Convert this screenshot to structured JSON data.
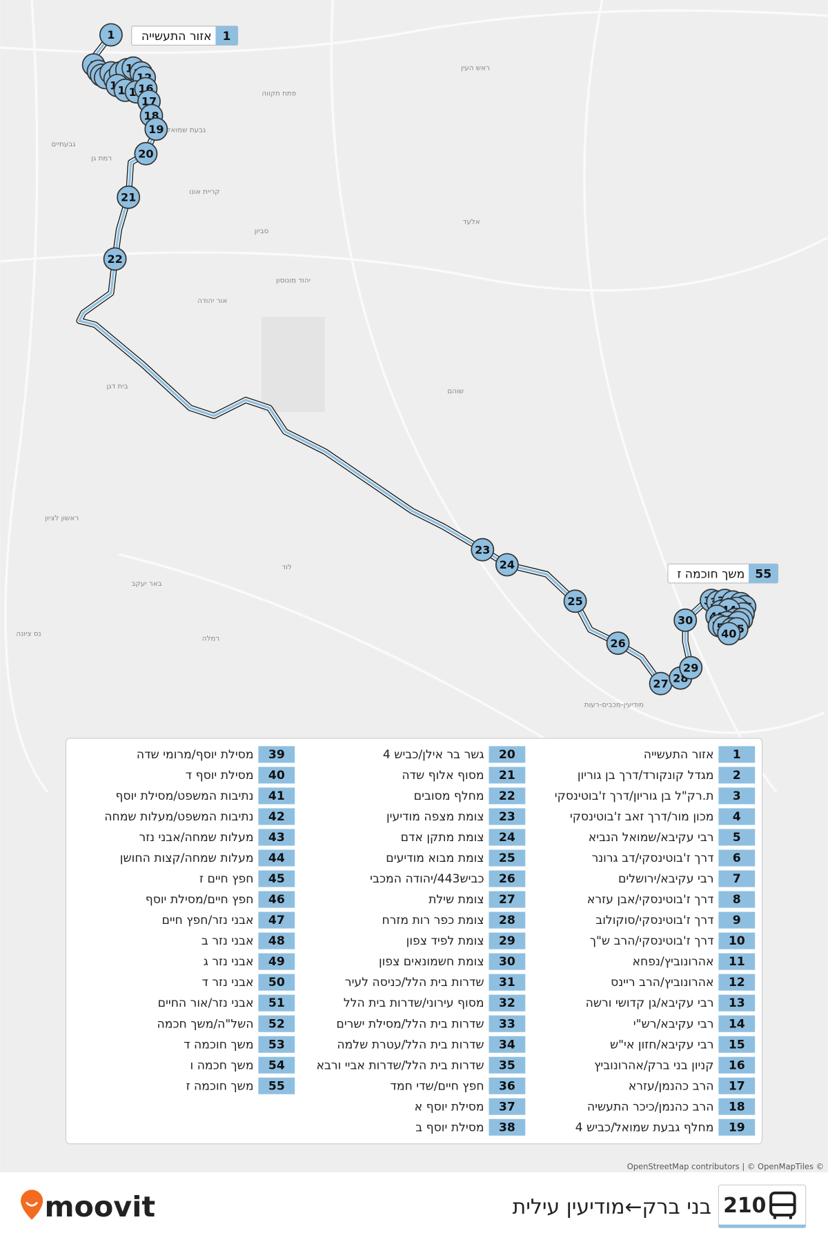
{
  "map": {
    "labels": [
      "פתח תקווה",
      "רמת גן",
      "גבעת שמואל",
      "גבעתיים",
      "קריית אונו",
      "סביון",
      "יהוד מונוסון",
      "אור יהודה",
      "ראש העין",
      "אלעד",
      "שוהם",
      "בית דגן",
      "לוד",
      "רמלה",
      "באר יעקב",
      "ראשון לציון",
      "נס ציונה",
      "מודיעין-מכבים-רעות"
    ],
    "attribution": "OpenStreetMap contributors | © OpenMapTiles ©"
  },
  "stops": [
    {
      "number": 1,
      "name": "אזור התעשייה"
    },
    {
      "number": 2,
      "name": "מגדל קונקורד/דרך בן גוריון"
    },
    {
      "number": 3,
      "name": "ת.רק\"ל בן גוריון/דרך ז'בוטינסקי"
    },
    {
      "number": 4,
      "name": "מכון מור/דרך זאב ז'בוטינסקי"
    },
    {
      "number": 5,
      "name": "רבי עקיבא/שמואל הנביא"
    },
    {
      "number": 6,
      "name": "דרך ז'בוטינסקי/דב גרונר"
    },
    {
      "number": 7,
      "name": "רבי עקיבא/ירושלים"
    },
    {
      "number": 8,
      "name": "דרך ז'בוטינסקי/אבן עזרא"
    },
    {
      "number": 9,
      "name": "דרך ז'בוטינסקי/סוקולוב"
    },
    {
      "number": 10,
      "name": "דרך ז'בוטינסקי/הרב ש\"ך"
    },
    {
      "number": 11,
      "name": "אהרונוביץ/נפחא"
    },
    {
      "number": 12,
      "name": "אהרונוביץ/הרב ריינס"
    },
    {
      "number": 13,
      "name": "רבי עקיבא/גן קדושי ורשה"
    },
    {
      "number": 14,
      "name": "רבי עקיבא/רש\"י"
    },
    {
      "number": 15,
      "name": "רבי עקיבא/חזון אי\"ש"
    },
    {
      "number": 16,
      "name": "קניון בני ברק/אהרונוביץ"
    },
    {
      "number": 17,
      "name": "הרב כהנמן/עזרא"
    },
    {
      "number": 18,
      "name": "הרב כהנמן/כיכר התעשיה"
    },
    {
      "number": 19,
      "name": "מחלף גבעת שמואל/כביש 4"
    },
    {
      "number": 20,
      "name": "גשר בר אילן/כביש 4"
    },
    {
      "number": 21,
      "name": "מסוף אלוף שדה"
    },
    {
      "number": 22,
      "name": "מחלף מסובים"
    },
    {
      "number": 23,
      "name": "צומת מצפה מודיעין"
    },
    {
      "number": 24,
      "name": "צומת מתקן אדם"
    },
    {
      "number": 25,
      "name": "צומת מבוא מודיעים"
    },
    {
      "number": 26,
      "name": "כביש443/יהודה המכבי"
    },
    {
      "number": 27,
      "name": "צומת שילת"
    },
    {
      "number": 28,
      "name": "צומת כפר רות מזרח"
    },
    {
      "number": 29,
      "name": "צומת לפיד צפון"
    },
    {
      "number": 30,
      "name": "צומת חשמונאים צפון"
    },
    {
      "number": 31,
      "name": "שדרות בית הלל/כניסה לעיר"
    },
    {
      "number": 32,
      "name": "מסוף עירוני/שדרות בית הלל"
    },
    {
      "number": 33,
      "name": "שדרות בית הלל/מסילת ישרים"
    },
    {
      "number": 34,
      "name": "שדרות בית הלל/עטרת שלמה"
    },
    {
      "number": 35,
      "name": "שדרות בית הלל/שדרות אביי ורבא"
    },
    {
      "number": 36,
      "name": "חפץ חיים/שדי חמד"
    },
    {
      "number": 37,
      "name": "מסילת יוסף א"
    },
    {
      "number": 38,
      "name": "מסילת יוסף ב"
    },
    {
      "number": 39,
      "name": "מסילת יוסף/מרומי שדה"
    },
    {
      "number": 40,
      "name": "מסילת יוסף ד"
    },
    {
      "number": 41,
      "name": "נתיבות המשפט/מסילת יוסף"
    },
    {
      "number": 42,
      "name": "נתיבות המשפט/מעלות שמחה"
    },
    {
      "number": 43,
      "name": "מעלות שמחה/אבני נזר"
    },
    {
      "number": 44,
      "name": "מעלות שמחה/קצות החושן"
    },
    {
      "number": 45,
      "name": "חפץ חיים ז"
    },
    {
      "number": 46,
      "name": "חפץ חיים/מסילת יוסף"
    },
    {
      "number": 47,
      "name": "אבני נזר/חפץ חיים"
    },
    {
      "number": 48,
      "name": "אבני נזר ב"
    },
    {
      "number": 49,
      "name": "אבני נזר ג"
    },
    {
      "number": 50,
      "name": "אבני נזר ד"
    },
    {
      "number": 51,
      "name": "אבני נזר/אור החיים"
    },
    {
      "number": 52,
      "name": "השל\"ה/משך חכמה"
    },
    {
      "number": 53,
      "name": "משך חוכמה ד"
    },
    {
      "number": 54,
      "name": "משך חכמה ו"
    },
    {
      "number": 55,
      "name": "משך חוכמה ז"
    }
  ],
  "header": {
    "route": "210",
    "title": "בני ברק←מודיעין עילית",
    "brand": "moovit"
  }
}
